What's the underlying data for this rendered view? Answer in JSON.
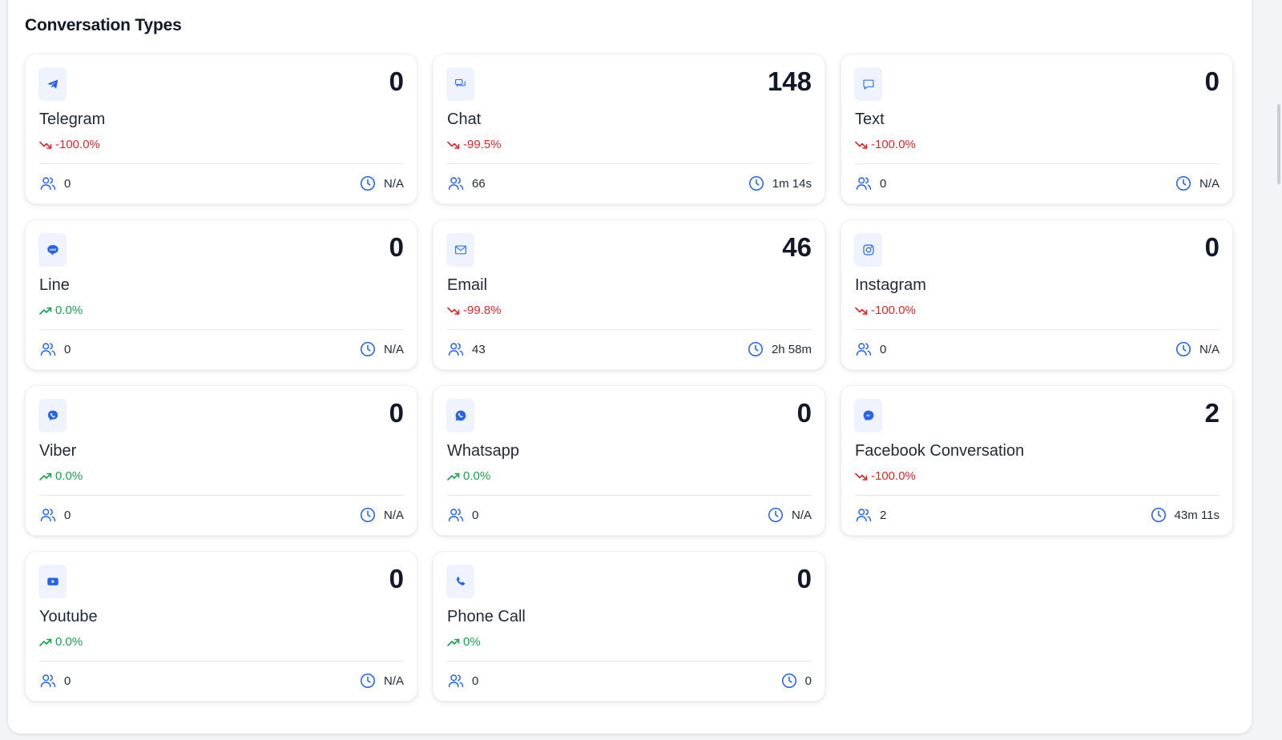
{
  "section": {
    "title": "Conversation Types"
  },
  "colors": {
    "accent": "#2563eb",
    "down": "#dc2626",
    "up": "#16a34a"
  },
  "cards": [
    {
      "name": "Telegram",
      "count": "0",
      "trend": "-100.0%",
      "direction": "down",
      "users": "0",
      "time": "N/A",
      "icon": "telegram-icon"
    },
    {
      "name": "Chat",
      "count": "148",
      "trend": "-99.5%",
      "direction": "down",
      "users": "66",
      "time": "1m 14s",
      "icon": "chat-bubbles-icon"
    },
    {
      "name": "Text",
      "count": "0",
      "trend": "-100.0%",
      "direction": "down",
      "users": "0",
      "time": "N/A",
      "icon": "message-square-icon"
    },
    {
      "name": "Line",
      "count": "0",
      "trend": "0.0%",
      "direction": "up",
      "users": "0",
      "time": "N/A",
      "icon": "line-icon"
    },
    {
      "name": "Email",
      "count": "46",
      "trend": "-99.8%",
      "direction": "down",
      "users": "43",
      "time": "2h 58m",
      "icon": "mail-icon"
    },
    {
      "name": "Instagram",
      "count": "0",
      "trend": "-100.0%",
      "direction": "down",
      "users": "0",
      "time": "N/A",
      "icon": "instagram-icon"
    },
    {
      "name": "Viber",
      "count": "0",
      "trend": "0.0%",
      "direction": "up",
      "users": "0",
      "time": "N/A",
      "icon": "viber-icon"
    },
    {
      "name": "Whatsapp",
      "count": "0",
      "trend": "0.0%",
      "direction": "up",
      "users": "0",
      "time": "N/A",
      "icon": "whatsapp-icon"
    },
    {
      "name": "Facebook Conversation",
      "count": "2",
      "trend": "-100.0%",
      "direction": "down",
      "users": "2",
      "time": "43m 11s",
      "icon": "messenger-icon"
    },
    {
      "name": "Youtube",
      "count": "0",
      "trend": "0.0%",
      "direction": "up",
      "users": "0",
      "time": "N/A",
      "icon": "youtube-icon"
    },
    {
      "name": "Phone Call",
      "count": "0",
      "trend": "0%",
      "direction": "up",
      "users": "0",
      "time": "0",
      "icon": "phone-icon"
    }
  ]
}
